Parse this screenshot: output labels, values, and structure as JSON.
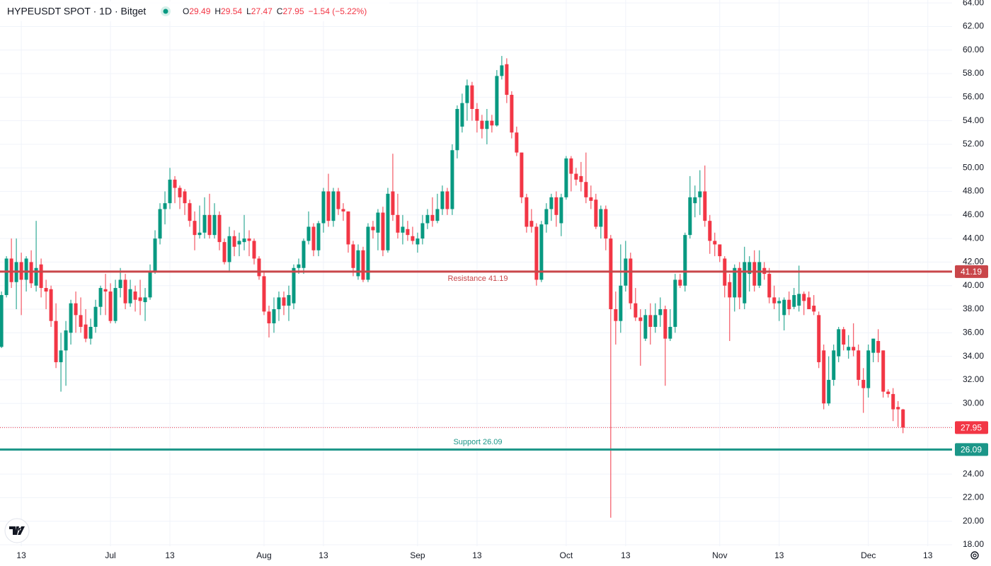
{
  "header": {
    "symbol": "HYPEUSDT SPOT · 1D · Bitget",
    "ohlc": [
      {
        "label": "O",
        "value": 29.49
      },
      {
        "label": "H",
        "value": 29.54
      },
      {
        "label": "L",
        "value": 27.47
      },
      {
        "label": "C",
        "value": 27.95
      }
    ],
    "change": "−1.54 (−5.22%)"
  },
  "chart_data": {
    "type": "candlestick",
    "up_color": "#089981",
    "down_color": "#f23645",
    "candles": [
      [
        34.8,
        39.5,
        34.7,
        39.2
      ],
      [
        39.2,
        42.5,
        39,
        42.3
      ],
      [
        42.3,
        44,
        39.8,
        40.3
      ],
      [
        40.3,
        44,
        38,
        42
      ],
      [
        42,
        42.8,
        37.5,
        40.5
      ],
      [
        40.5,
        42.5,
        39.5,
        42.3
      ],
      [
        42,
        43,
        39.8,
        40.2
      ],
      [
        40,
        45.5,
        39.5,
        41.5
      ],
      [
        41.8,
        42.3,
        39,
        39.8
      ],
      [
        39.8,
        40.5,
        38,
        39.5
      ],
      [
        39.7,
        40,
        36.5,
        37
      ],
      [
        37,
        38.5,
        33,
        33.5
      ],
      [
        33.5,
        36,
        31,
        34.5
      ],
      [
        34.5,
        37,
        31.5,
        36.2
      ],
      [
        36,
        38.8,
        35,
        38.5
      ],
      [
        38.5,
        39.5,
        36,
        37.5
      ],
      [
        37.5,
        39,
        36,
        36.5
      ],
      [
        36.7,
        38,
        35.2,
        35.5
      ],
      [
        35.5,
        37.2,
        35,
        36.5
      ],
      [
        36.5,
        38.8,
        36,
        38.2
      ],
      [
        38.2,
        40,
        37.5,
        39.8
      ],
      [
        39.7,
        41,
        37.5,
        39.5
      ],
      [
        39.5,
        40.2,
        36.8,
        37
      ],
      [
        37,
        40.5,
        36.8,
        39.8
      ],
      [
        39.8,
        41.5,
        39,
        40.5
      ],
      [
        40.5,
        41,
        38,
        38.5
      ],
      [
        38.5,
        40.5,
        38.2,
        39.7
      ],
      [
        39.5,
        40,
        37.8,
        38.8
      ],
      [
        39,
        40.5,
        37.5,
        38.7
      ],
      [
        38.6,
        39.8,
        37,
        39
      ],
      [
        39,
        41.8,
        38.8,
        41.2
      ],
      [
        41.2,
        44.7,
        41,
        44
      ],
      [
        44,
        47,
        43.5,
        46.5
      ],
      [
        46.5,
        48,
        45.2,
        47
      ],
      [
        47,
        50,
        46.5,
        49
      ],
      [
        49,
        49.3,
        47,
        48.3
      ],
      [
        48.3,
        48.5,
        46.5,
        47.5
      ],
      [
        48,
        48.2,
        46,
        47
      ],
      [
        47,
        47.3,
        45,
        45.5
      ],
      [
        45.5,
        46.3,
        43,
        44.3
      ],
      [
        44.3,
        46.8,
        44,
        44.5
      ],
      [
        44.5,
        47.5,
        44,
        46
      ],
      [
        46,
        47.8,
        44,
        44.3
      ],
      [
        44.3,
        47,
        44,
        46
      ],
      [
        46,
        46.3,
        43,
        43.7
      ],
      [
        43.7,
        44,
        41.8,
        42
      ],
      [
        42,
        45,
        41.2,
        44.2
      ],
      [
        44.2,
        44.7,
        42.5,
        43.3
      ],
      [
        43.5,
        44.5,
        42.5,
        43.8
      ],
      [
        43.7,
        46,
        43,
        44
      ],
      [
        44,
        44.7,
        42.5,
        43.8
      ],
      [
        43.8,
        44,
        41.8,
        42.3
      ],
      [
        42.3,
        42.5,
        40.5,
        40.8
      ],
      [
        40.8,
        41.2,
        37.5,
        37.8
      ],
      [
        37.8,
        38.3,
        35.6,
        36.8
      ],
      [
        36.8,
        39,
        36,
        38
      ],
      [
        38,
        39.5,
        37,
        39
      ],
      [
        39,
        39.5,
        37.5,
        38.3
      ],
      [
        38.3,
        40,
        37,
        39.2
      ],
      [
        38.5,
        41.8,
        38,
        41.5
      ],
      [
        41.5,
        42.3,
        41,
        41.8
      ],
      [
        41.5,
        44,
        41,
        43.8
      ],
      [
        43.8,
        46.3,
        43.5,
        45
      ],
      [
        45,
        45.3,
        42.5,
        43
      ],
      [
        43,
        45.5,
        42.5,
        45.3
      ],
      [
        45.3,
        48.3,
        44.5,
        48
      ],
      [
        48,
        49.5,
        45,
        45.5
      ],
      [
        45.5,
        48.3,
        45,
        48
      ],
      [
        48,
        48.3,
        46,
        46.5
      ],
      [
        46.5,
        47,
        45.5,
        46.3
      ],
      [
        46.3,
        46.3,
        42.8,
        43.5
      ],
      [
        43.5,
        43.8,
        40.8,
        41.5
      ],
      [
        40.8,
        43.5,
        40.5,
        43
      ],
      [
        43,
        43.3,
        40.3,
        40.5
      ],
      [
        40.5,
        45.3,
        40.3,
        45
      ],
      [
        45,
        45.5,
        44,
        44.7
      ],
      [
        44.5,
        46.5,
        43,
        46.2
      ],
      [
        46.2,
        46.7,
        42.5,
        43
      ],
      [
        43,
        48.3,
        42.8,
        47.8
      ],
      [
        48,
        51.2,
        45.5,
        46
      ],
      [
        46,
        47.8,
        44,
        44.5
      ],
      [
        44.5,
        46,
        43.5,
        45
      ],
      [
        44.8,
        45.5,
        43.8,
        44.3
      ],
      [
        44.2,
        45,
        43.5,
        43.8
      ],
      [
        43.5,
        44.5,
        42.8,
        44
      ],
      [
        44,
        46,
        43.5,
        45.3
      ],
      [
        45.3,
        46.5,
        44.8,
        46
      ],
      [
        46,
        47.5,
        45,
        45.5
      ],
      [
        45.5,
        47.8,
        45.3,
        46.5
      ],
      [
        46.5,
        48.5,
        46,
        48
      ],
      [
        48,
        48.3,
        46,
        46.5
      ],
      [
        46.5,
        52,
        46,
        51.5
      ],
      [
        51.5,
        55.3,
        50.8,
        55
      ],
      [
        53.5,
        56.3,
        53,
        55.5
      ],
      [
        55.5,
        57.5,
        54,
        57
      ],
      [
        57,
        57.3,
        54,
        55
      ],
      [
        55,
        55.5,
        53,
        54
      ],
      [
        54,
        54.5,
        52.5,
        53.3
      ],
      [
        53.3,
        55,
        52,
        54
      ],
      [
        54,
        54.5,
        53,
        53.6
      ],
      [
        53.6,
        58.3,
        53.5,
        57.8
      ],
      [
        57.8,
        59.5,
        57.5,
        58.7
      ],
      [
        58.8,
        59.3,
        55.5,
        56.2
      ],
      [
        56.2,
        56.5,
        52.5,
        53
      ],
      [
        53,
        53.5,
        51,
        51.3
      ],
      [
        51.3,
        51.3,
        47,
        47.5
      ],
      [
        47.5,
        47.8,
        44.5,
        45
      ],
      [
        45.5,
        46.5,
        44.5,
        45
      ],
      [
        45,
        45.3,
        40,
        40.5
      ],
      [
        40.5,
        45.5,
        40.3,
        45.2
      ],
      [
        45.2,
        47,
        44.5,
        46.5
      ],
      [
        46.5,
        47.8,
        45.5,
        47.5
      ],
      [
        47.5,
        48,
        45,
        46
      ],
      [
        45.3,
        47.8,
        44.2,
        47.5
      ],
      [
        47.5,
        51,
        47.3,
        50.8
      ],
      [
        50.8,
        51,
        48,
        49.5
      ],
      [
        49.5,
        50,
        48.5,
        49
      ],
      [
        49.3,
        50.5,
        48,
        48.8
      ],
      [
        48.8,
        51.3,
        47,
        47.5
      ],
      [
        47.5,
        48.5,
        46.5,
        47.2
      ],
      [
        47.3,
        47.8,
        44.8,
        45
      ],
      [
        45,
        46.8,
        44,
        46.5
      ],
      [
        46.5,
        46.8,
        43,
        44
      ],
      [
        44,
        44.3,
        20.3,
        38
      ],
      [
        38,
        39.5,
        35,
        37
      ],
      [
        37,
        43.5,
        36,
        40
      ],
      [
        40,
        43.8,
        39.5,
        42.3
      ],
      [
        42.3,
        42.8,
        38,
        38.5
      ],
      [
        38.5,
        39.8,
        37,
        37.3
      ],
      [
        37.3,
        38,
        33.2,
        37
      ],
      [
        35.5,
        38,
        35.3,
        37.5
      ],
      [
        37.5,
        38.5,
        35,
        36.5
      ],
      [
        36.5,
        38.5,
        36,
        37.5
      ],
      [
        37.5,
        39,
        36.5,
        38
      ],
      [
        38,
        38.3,
        31.5,
        35.5
      ],
      [
        35.5,
        38,
        35.3,
        36.5
      ],
      [
        36.5,
        41,
        36,
        40.5
      ],
      [
        40.5,
        41,
        39.8,
        40
      ],
      [
        40,
        44.5,
        39.5,
        44.3
      ],
      [
        44.3,
        49.3,
        44,
        47.5
      ],
      [
        47,
        48.5,
        45.8,
        47.5
      ],
      [
        47.5,
        49.8,
        46,
        48
      ],
      [
        48,
        50.2,
        45,
        45.5
      ],
      [
        45.5,
        46,
        42.7,
        43.8
      ],
      [
        43.8,
        44.5,
        42.5,
        43.5
      ],
      [
        43.5,
        43.5,
        42,
        42.5
      ],
      [
        42.3,
        42.5,
        39,
        40
      ],
      [
        40.3,
        41,
        35.3,
        39
      ],
      [
        39,
        41.8,
        37.8,
        41.5
      ],
      [
        41.5,
        42,
        38,
        39
      ],
      [
        38.5,
        43.3,
        38,
        42
      ],
      [
        41,
        42.5,
        39.5,
        42
      ],
      [
        42,
        43,
        39.5,
        40
      ],
      [
        40,
        43,
        39.8,
        42
      ],
      [
        41.5,
        42,
        40.5,
        41
      ],
      [
        41,
        41.5,
        38.5,
        39
      ],
      [
        39,
        40,
        38,
        38.5
      ],
      [
        38.5,
        39,
        37,
        38.7
      ],
      [
        37.5,
        39,
        36.2,
        38.8
      ],
      [
        38.8,
        39.5,
        37.5,
        38
      ],
      [
        38.2,
        39.8,
        38,
        39.2
      ],
      [
        38.3,
        41.7,
        37.8,
        39.3
      ],
      [
        39.3,
        39.5,
        37.5,
        38.7
      ],
      [
        39,
        39.5,
        38,
        38
      ],
      [
        38.3,
        39.2,
        37.5,
        37.8
      ],
      [
        37.5,
        37.8,
        33,
        33.5
      ],
      [
        34.5,
        35,
        29.5,
        30
      ],
      [
        30,
        34,
        29.8,
        32
      ],
      [
        32,
        35,
        31.5,
        34.5
      ],
      [
        34,
        36.5,
        33.5,
        36.3
      ],
      [
        36.3,
        36.5,
        34.5,
        35
      ],
      [
        34.5,
        35.8,
        33.8,
        34.8
      ],
      [
        34.8,
        36.8,
        34,
        34.5
      ],
      [
        34.5,
        35,
        31.5,
        32
      ],
      [
        32,
        33,
        29.2,
        31.3
      ],
      [
        31.3,
        35,
        30.5,
        34.5
      ],
      [
        34.3,
        35.5,
        33.5,
        35.5
      ],
      [
        35.3,
        36.3,
        33.5,
        34.3
      ],
      [
        34.5,
        34.5,
        30.5,
        31
      ],
      [
        31,
        31.2,
        30.5,
        30.8
      ],
      [
        30.8,
        31.3,
        28.5,
        29.5
      ],
      [
        29.7,
        30.2,
        28,
        29.5
      ],
      [
        29.49,
        29.54,
        27.47,
        27.95
      ]
    ],
    "xlim": [
      -0.3,
      191.9
    ],
    "xticks": [
      {
        "value": 4,
        "label": "13"
      },
      {
        "value": 22,
        "label": "Jul"
      },
      {
        "value": 34,
        "label": "13"
      },
      {
        "value": 53,
        "label": "Aug"
      },
      {
        "value": 65,
        "label": "13"
      },
      {
        "value": 84,
        "label": "Sep"
      },
      {
        "value": 96,
        "label": "13"
      },
      {
        "value": 114,
        "label": "Oct"
      },
      {
        "value": 126,
        "label": "13"
      },
      {
        "value": 145,
        "label": "Nov"
      },
      {
        "value": 157,
        "label": "13"
      },
      {
        "value": 175,
        "label": "Dec"
      },
      {
        "value": 187,
        "label": "13"
      }
    ],
    "ylim": [
      17.88,
      64.25
    ],
    "yticks": [
      {
        "value": 18,
        "label": "18.00"
      },
      {
        "value": 20,
        "label": "20.00"
      },
      {
        "value": 22,
        "label": "22.00"
      },
      {
        "value": 24,
        "label": "24.00"
      },
      {
        "value": 26,
        "label": "26.00"
      },
      {
        "value": 28,
        "label": "28.00"
      },
      {
        "value": 30,
        "label": "30.00"
      },
      {
        "value": 32,
        "label": "32.00"
      },
      {
        "value": 34,
        "label": "34.00"
      },
      {
        "value": 36,
        "label": "36.00"
      },
      {
        "value": 38,
        "label": "38.00"
      },
      {
        "value": 40,
        "label": "40.00"
      },
      {
        "value": 42,
        "label": "42.00"
      },
      {
        "value": 44,
        "label": "44.00"
      },
      {
        "value": 46,
        "label": "46.00"
      },
      {
        "value": 48,
        "label": "48.00"
      },
      {
        "value": 50,
        "label": "50.00"
      },
      {
        "value": 52,
        "label": "52.00"
      },
      {
        "value": 54,
        "label": "54.00"
      },
      {
        "value": 56,
        "label": "56.00"
      },
      {
        "value": 58,
        "label": "58.00"
      },
      {
        "value": 60,
        "label": "60.00"
      },
      {
        "value": 62,
        "label": "62.00"
      },
      {
        "value": 64,
        "label": "64.00"
      }
    ],
    "grid": true,
    "levels": [
      {
        "label": "Resistance 41.19",
        "value": 41.19,
        "color": "#c9464a"
      },
      {
        "label": "Support 26.09",
        "value": 26.09,
        "color": "#1b9688"
      }
    ],
    "last_price": {
      "value": 27.95,
      "color": "#f23645"
    }
  }
}
